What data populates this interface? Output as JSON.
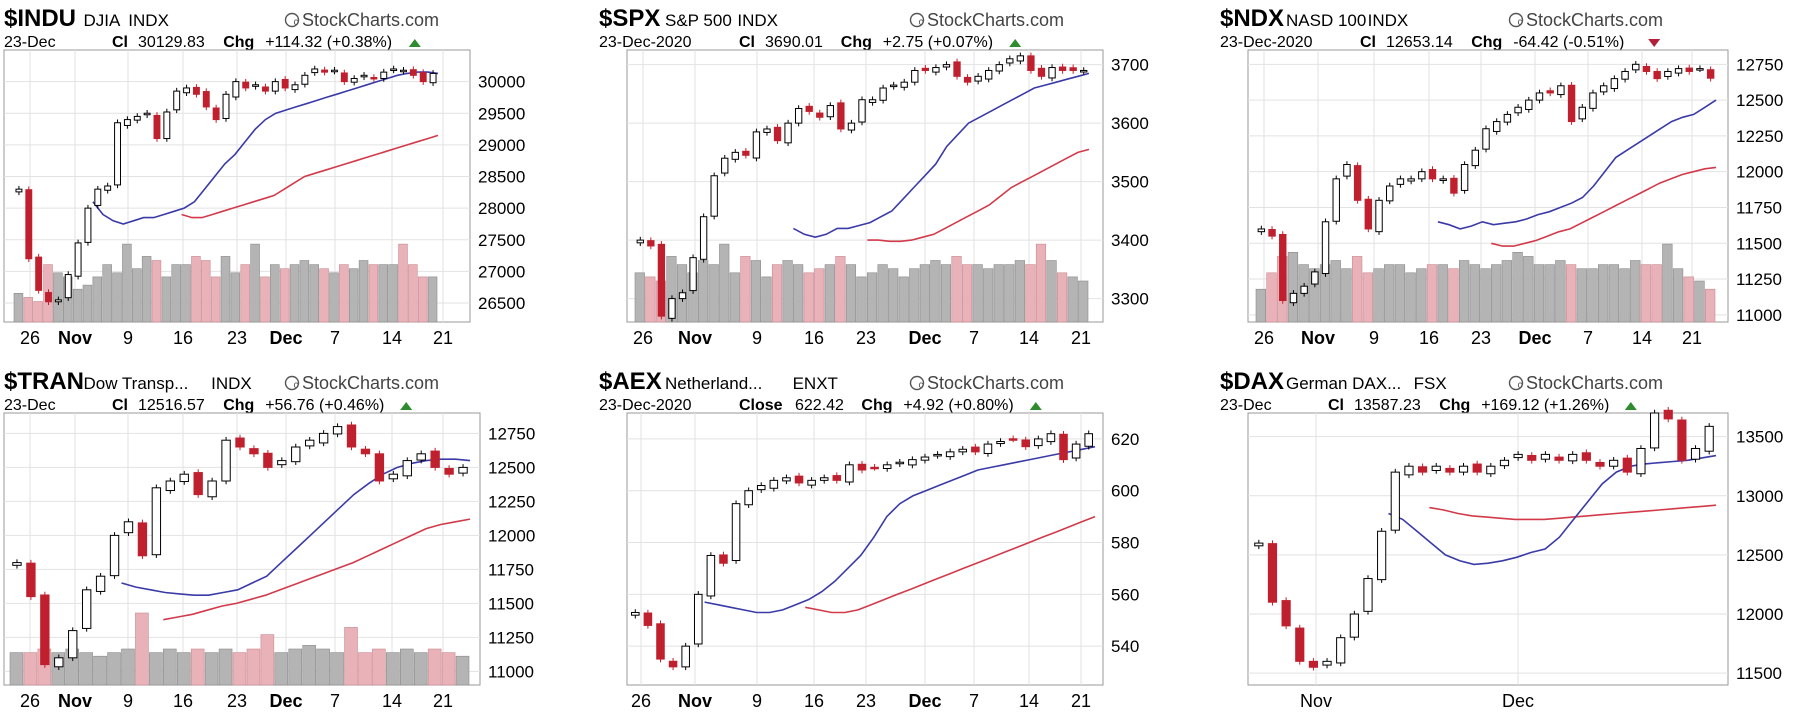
{
  "chart_data": [
    {
      "type": "candlestick",
      "symbol": "$INDU",
      "name": "DJIA",
      "exchange": "INDX",
      "watermark": "StockCharts.com",
      "date": "23-Dec",
      "close_label": "Cl",
      "close": "30129.83",
      "chg_label": "Chg",
      "chg": "+114.32 (+0.38%)",
      "direction": "up",
      "ylim": [
        26200,
        30500
      ],
      "yticks": [
        30000,
        29500,
        29000,
        28500,
        28000,
        27500,
        27000,
        26500
      ],
      "xticks": [
        {
          "label": "26",
          "bold": false
        },
        {
          "label": "Nov",
          "bold": true
        },
        {
          "label": "9",
          "bold": false
        },
        {
          "label": "16",
          "bold": false
        },
        {
          "label": "23",
          "bold": false
        },
        {
          "label": "Dec",
          "bold": true
        },
        {
          "label": "7",
          "bold": false
        },
        {
          "label": "14",
          "bold": false
        },
        {
          "label": "21",
          "bold": false
        }
      ],
      "close_series": [
        28300,
        27200,
        26700,
        26520,
        26550,
        26950,
        27450,
        28000,
        28300,
        28350,
        29350,
        29400,
        29450,
        29500,
        29100,
        29520,
        29850,
        29900,
        29800,
        29600,
        29400,
        29800,
        30000,
        29900,
        29950,
        29850,
        30000,
        29900,
        29950,
        30100,
        30200,
        30150,
        30180,
        30000,
        30050,
        30100,
        30050,
        30150,
        30200,
        30180,
        30100,
        30000,
        30130
      ],
      "sma_fast": [
        28100,
        27900,
        27800,
        27750,
        27800,
        27850,
        27850,
        27900,
        27950,
        28000,
        28100,
        28300,
        28500,
        28700,
        28850,
        29050,
        29250,
        29400,
        29500,
        29550,
        29600,
        29650,
        29700,
        29750,
        29800,
        29850,
        29900,
        29950,
        30000,
        30050,
        30100,
        30130,
        30150,
        30150,
        30130
      ],
      "sma_slow": [
        27900,
        27850,
        27850,
        27900,
        27950,
        28000,
        28050,
        28100,
        28150,
        28200,
        28300,
        28400,
        28500,
        28550,
        28600,
        28650,
        28700,
        28750,
        28800,
        28850,
        28900,
        28950,
        29000,
        29050,
        29100,
        29150
      ],
      "volume_ylim": [
        0,
        100
      ],
      "volume": [
        35,
        30,
        25,
        70,
        60,
        55,
        40,
        45,
        55,
        70,
        60,
        95,
        65,
        80,
        75,
        55,
        70,
        70,
        80,
        75,
        55,
        80,
        60,
        70,
        95,
        55,
        70,
        65,
        70,
        75,
        70,
        65,
        60,
        70,
        65,
        75,
        70,
        70,
        70,
        95,
        70,
        55,
        55
      ]
    },
    {
      "type": "candlestick",
      "symbol": "$SPX",
      "name": "S&P 500",
      "exchange": "INDX",
      "watermark": "StockCharts.com",
      "date": "23-Dec-2020",
      "close_label": "Cl",
      "close": "3690.01",
      "chg_label": "Chg",
      "chg": "+2.75 (+0.07%)",
      "direction": "up",
      "ylim": [
        3260,
        3725
      ],
      "yticks": [
        3700,
        3600,
        3500,
        3400,
        3300
      ],
      "xticks": [
        {
          "label": "26",
          "bold": false
        },
        {
          "label": "Nov",
          "bold": true
        },
        {
          "label": "9",
          "bold": false
        },
        {
          "label": "16",
          "bold": false
        },
        {
          "label": "23",
          "bold": false
        },
        {
          "label": "Dec",
          "bold": true
        },
        {
          "label": "7",
          "bold": false
        },
        {
          "label": "14",
          "bold": false
        },
        {
          "label": "21",
          "bold": false
        }
      ],
      "close_series": [
        3400,
        3390,
        3270,
        3300,
        3310,
        3370,
        3440,
        3510,
        3540,
        3550,
        3545,
        3585,
        3590,
        3570,
        3600,
        3625,
        3620,
        3610,
        3630,
        3590,
        3600,
        3640,
        3640,
        3660,
        3665,
        3670,
        3690,
        3690,
        3695,
        3700,
        3680,
        3670,
        3680,
        3690,
        3700,
        3710,
        3715,
        3690,
        3680,
        3695,
        3690,
        3690,
        3690
      ],
      "sma_fast": [
        3420,
        3410,
        3405,
        3410,
        3420,
        3420,
        3425,
        3430,
        3440,
        3450,
        3470,
        3490,
        3510,
        3530,
        3560,
        3580,
        3600,
        3610,
        3620,
        3630,
        3640,
        3650,
        3660,
        3665,
        3670,
        3675,
        3680,
        3685
      ],
      "sma_slow": [
        3400,
        3400,
        3398,
        3398,
        3400,
        3405,
        3410,
        3420,
        3430,
        3440,
        3450,
        3460,
        3475,
        3490,
        3500,
        3510,
        3520,
        3530,
        3540,
        3550,
        3555
      ],
      "volume_ylim": [
        0,
        100
      ],
      "volume": [
        60,
        55,
        50,
        80,
        70,
        60,
        75,
        70,
        95,
        60,
        80,
        75,
        55,
        70,
        75,
        70,
        60,
        65,
        70,
        80,
        70,
        55,
        60,
        70,
        65,
        55,
        65,
        70,
        75,
        70,
        80,
        70,
        70,
        65,
        70,
        70,
        75,
        70,
        95,
        75,
        60,
        55,
        50
      ]
    },
    {
      "type": "candlestick",
      "symbol": "$NDX",
      "name": "NASD 100",
      "exchange": "INDX",
      "watermark": "StockCharts.com",
      "date": "23-Dec-2020",
      "close_label": "Cl",
      "close": "12653.14",
      "chg_label": "Chg",
      "chg": "-64.42 (-0.51%)",
      "direction": "down",
      "ylim": [
        10950,
        12850
      ],
      "yticks": [
        12750,
        12500,
        12250,
        12000,
        11750,
        11500,
        11250,
        11000
      ],
      "xticks": [
        {
          "label": "26",
          "bold": false
        },
        {
          "label": "Nov",
          "bold": true
        },
        {
          "label": "9",
          "bold": false
        },
        {
          "label": "16",
          "bold": false
        },
        {
          "label": "23",
          "bold": false
        },
        {
          "label": "Dec",
          "bold": true
        },
        {
          "label": "7",
          "bold": false
        },
        {
          "label": "14",
          "bold": false
        },
        {
          "label": "21",
          "bold": false
        }
      ],
      "close_series": [
        11600,
        11550,
        11100,
        11150,
        11200,
        11300,
        11650,
        11950,
        12050,
        11800,
        11600,
        11800,
        11900,
        11950,
        11950,
        12000,
        11950,
        11950,
        11850,
        12050,
        12150,
        12300,
        12350,
        12400,
        12450,
        12500,
        12550,
        12550,
        12600,
        12350,
        12450,
        12550,
        12600,
        12650,
        12700,
        12750,
        12700,
        12650,
        12700,
        12720,
        12700,
        12720,
        12653
      ],
      "sma_fast": [
        11650,
        11630,
        11600,
        11620,
        11650,
        11630,
        11640,
        11650,
        11670,
        11700,
        11720,
        11750,
        11780,
        11820,
        11900,
        12000,
        12100,
        12150,
        12200,
        12250,
        12300,
        12350,
        12380,
        12400,
        12450,
        12500
      ],
      "sma_slow": [
        11500,
        11480,
        11480,
        11500,
        11520,
        11550,
        11580,
        11600,
        11640,
        11680,
        11720,
        11760,
        11800,
        11840,
        11880,
        11920,
        11950,
        11980,
        12000,
        12020,
        12030
      ],
      "volume_ylim": [
        0,
        100
      ],
      "volume": [
        40,
        60,
        80,
        85,
        70,
        65,
        70,
        75,
        65,
        80,
        60,
        65,
        70,
        70,
        60,
        65,
        70,
        70,
        65,
        75,
        70,
        65,
        70,
        75,
        85,
        80,
        70,
        70,
        75,
        70,
        65,
        65,
        70,
        70,
        65,
        75,
        70,
        70,
        95,
        65,
        55,
        50,
        40
      ]
    },
    {
      "type": "candlestick",
      "symbol": "$TRAN",
      "name": "Dow Transp...",
      "exchange": "INDX",
      "watermark": "StockCharts.com",
      "date": "23-Dec",
      "close_label": "Cl",
      "close": "12516.57",
      "chg_label": "Chg",
      "chg": "+56.76 (+0.46%)",
      "direction": "up",
      "ylim": [
        10900,
        12900
      ],
      "yticks": [
        12750,
        12500,
        12250,
        12000,
        11750,
        11500,
        11250,
        11000
      ],
      "xticks": [
        {
          "label": "26",
          "bold": false
        },
        {
          "label": "Nov",
          "bold": true
        },
        {
          "label": "9",
          "bold": false
        },
        {
          "label": "16",
          "bold": false
        },
        {
          "label": "23",
          "bold": false
        },
        {
          "label": "Dec",
          "bold": true
        },
        {
          "label": "7",
          "bold": false
        },
        {
          "label": "14",
          "bold": false
        },
        {
          "label": "21",
          "bold": false
        }
      ],
      "close_series": [
        11800,
        11550,
        11050,
        11100,
        11300,
        11600,
        11700,
        12000,
        12100,
        11850,
        12350,
        12400,
        12450,
        12300,
        12400,
        12700,
        12650,
        12600,
        12500,
        12550,
        12650,
        12700,
        12750,
        12800,
        12650,
        12600,
        12400,
        12450,
        12550,
        12600,
        12500,
        12450,
        12500
      ],
      "sma_fast": [
        11650,
        11620,
        11600,
        11580,
        11570,
        11560,
        11560,
        11580,
        11600,
        11650,
        11700,
        11800,
        11900,
        12000,
        12100,
        12200,
        12300,
        12380,
        12450,
        12500,
        12530,
        12550,
        12560,
        12560,
        12550
      ],
      "sma_slow": [
        11380,
        11400,
        11420,
        11450,
        11480,
        11500,
        11530,
        11560,
        11600,
        11640,
        11680,
        11720,
        11760,
        11800,
        11850,
        11900,
        11950,
        12000,
        12050,
        12080,
        12100,
        12120
      ],
      "volume_ylim": [
        0,
        100
      ],
      "volume": [
        45,
        45,
        50,
        45,
        50,
        45,
        40,
        45,
        50,
        100,
        45,
        50,
        45,
        50,
        45,
        50,
        45,
        50,
        70,
        45,
        50,
        55,
        50,
        45,
        80,
        45,
        50,
        45,
        50,
        45,
        50,
        45,
        40
      ]
    },
    {
      "type": "candlestick",
      "symbol": "$AEX",
      "name": "Netherland...",
      "exchange": "ENXT",
      "watermark": "StockCharts.com",
      "date": "23-Dec-2020",
      "close_label": "Close",
      "close": "622.42",
      "chg_label": "Chg",
      "chg": "+4.92 (+0.80%)",
      "direction": "up",
      "ylim": [
        525,
        630
      ],
      "yticks": [
        620,
        600,
        580,
        560,
        540
      ],
      "xticks": [
        {
          "label": "26",
          "bold": false
        },
        {
          "label": "Nov",
          "bold": true
        },
        {
          "label": "9",
          "bold": false
        },
        {
          "label": "16",
          "bold": false
        },
        {
          "label": "23",
          "bold": false
        },
        {
          "label": "Dec",
          "bold": true
        },
        {
          "label": "7",
          "bold": false
        },
        {
          "label": "14",
          "bold": false
        },
        {
          "label": "21",
          "bold": false
        }
      ],
      "close_series": [
        553,
        548,
        535,
        532,
        540,
        560,
        575,
        572,
        595,
        600,
        602,
        604,
        605,
        603,
        604,
        605,
        604,
        610,
        608,
        609,
        610,
        611,
        612,
        613,
        614,
        615,
        616,
        615,
        618,
        619,
        620,
        617,
        620,
        622,
        612,
        618,
        622
      ],
      "sma_fast": [
        557,
        556,
        555,
        554,
        553,
        553,
        554,
        556,
        558,
        561,
        565,
        570,
        575,
        582,
        590,
        595,
        598,
        600,
        602,
        604,
        606,
        608,
        609,
        610,
        611,
        612,
        613,
        614,
        615,
        616,
        617
      ],
      "sma_slow": [
        555,
        554,
        553,
        553,
        554,
        556,
        558,
        560,
        562,
        564,
        566,
        568,
        570,
        572,
        574,
        576,
        578,
        580,
        582,
        584,
        586,
        588,
        590
      ],
      "volume_ylim": [
        0,
        100
      ],
      "volume": []
    },
    {
      "type": "candlestick",
      "symbol": "$DAX",
      "name": "German DAX...",
      "exchange": "FSX",
      "watermark": "StockCharts.com",
      "date": "23-Dec",
      "close_label": "Cl",
      "close": "13587.23",
      "chg_label": "Chg",
      "chg": "+169.12 (+1.26%)",
      "direction": "up",
      "ylim": [
        11400,
        13700
      ],
      "yticks": [
        13500,
        13000,
        12500,
        12000,
        11500
      ],
      "xticks": [
        {
          "label": "Nov",
          "bold": false
        },
        {
          "label": "Dec",
          "bold": false
        }
      ],
      "close_series": [
        12600,
        12100,
        11900,
        11600,
        11550,
        11600,
        11800,
        12000,
        12300,
        12700,
        13200,
        13250,
        13200,
        13250,
        13200,
        13250,
        13200,
        13250,
        13300,
        13350,
        13300,
        13350,
        13300,
        13350,
        13300,
        13250,
        13300,
        13200,
        13400,
        13700,
        13650,
        13300,
        13400,
        13587
      ],
      "sma_fast": [
        12850,
        12800,
        12700,
        12600,
        12500,
        12450,
        12420,
        12430,
        12450,
        12480,
        12520,
        12550,
        12650,
        12800,
        12950,
        13100,
        13200,
        13250,
        13270,
        13280,
        13290,
        13300,
        13320,
        13340
      ],
      "sma_slow": [
        12900,
        12880,
        12850,
        12830,
        12820,
        12810,
        12800,
        12800,
        12800,
        12810,
        12820,
        12830,
        12840,
        12850,
        12860,
        12870,
        12880,
        12890,
        12900,
        12910,
        12920
      ],
      "volume_ylim": [
        0,
        100
      ],
      "volume": []
    }
  ]
}
